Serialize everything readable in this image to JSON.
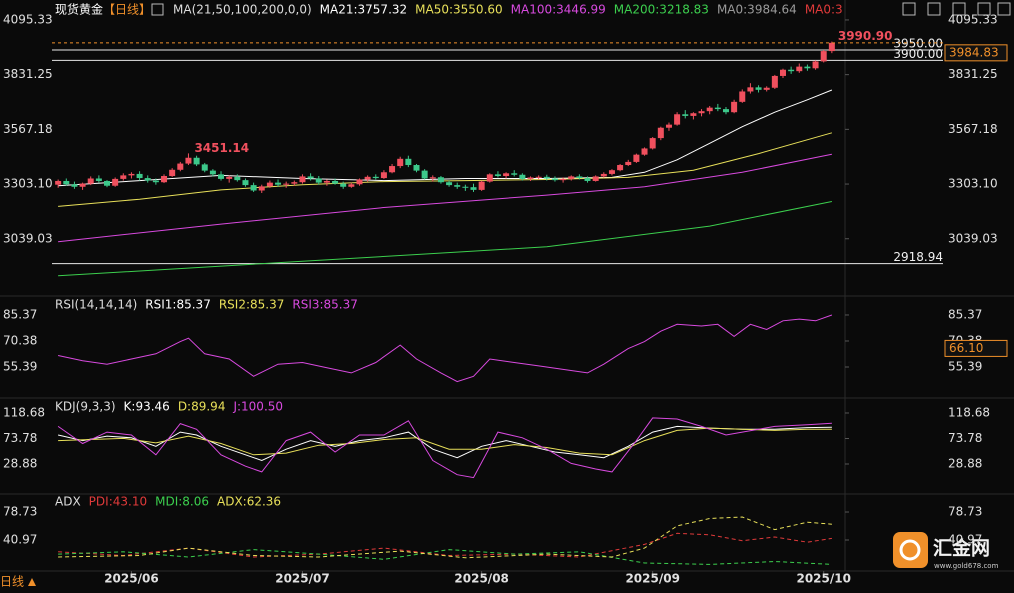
{
  "chart_data": [
    {
      "type": "candlestick",
      "title": "现货黄金",
      "period": "【日线】",
      "indicator": "MA(21,50,100,200,0,0)",
      "legend_items": [
        {
          "text": "MA21:3757.32",
          "color": "#ffffff"
        },
        {
          "text": "MA50:3550.60",
          "color": "#e8e05a"
        },
        {
          "text": "MA100:3446.99",
          "color": "#d84adf"
        },
        {
          "text": "MA200:3218.83",
          "color": "#3ccf4e"
        },
        {
          "text": "MA0:3984.64",
          "color": "#9a9a9a"
        },
        {
          "text": "MA0:3",
          "color": "#e03a3a"
        }
      ],
      "xlim": [
        -1,
        96
      ],
      "xticks": [
        {
          "value": 9,
          "label": "2025/06"
        },
        {
          "value": 30,
          "label": "2025/07"
        },
        {
          "value": 52,
          "label": "2025/08"
        },
        {
          "value": 73,
          "label": "2025/09"
        },
        {
          "value": 94,
          "label": "2025/10"
        }
      ],
      "ylim": [
        2782,
        4153
      ],
      "yticks": [
        4095.33,
        3831.25,
        3567.18,
        {
          "value": 3303.1,
          "label": "3303.10"
        },
        3039.03
      ],
      "up_color": "#f0505e",
      "down_color": "#3cc88a",
      "candles": [
        [
          3300,
          3325,
          3285,
          3318
        ],
        [
          3318,
          3330,
          3295,
          3302
        ],
        [
          3302,
          3315,
          3280,
          3290
        ],
        [
          3290,
          3310,
          3275,
          3305
        ],
        [
          3305,
          3340,
          3298,
          3330
        ],
        [
          3330,
          3345,
          3310,
          3318
        ],
        [
          3318,
          3322,
          3288,
          3295
        ],
        [
          3295,
          3335,
          3290,
          3328
        ],
        [
          3328,
          3355,
          3320,
          3345
        ],
        [
          3345,
          3360,
          3330,
          3352
        ],
        [
          3352,
          3365,
          3320,
          3332
        ],
        [
          3332,
          3345,
          3310,
          3320
        ],
        [
          3320,
          3330,
          3300,
          3312
        ],
        [
          3312,
          3350,
          3308,
          3342
        ],
        [
          3342,
          3380,
          3338,
          3372
        ],
        [
          3372,
          3410,
          3365,
          3402
        ],
        [
          3402,
          3451.14,
          3395,
          3430
        ],
        [
          3430,
          3440,
          3390,
          3398
        ],
        [
          3398,
          3405,
          3360,
          3368
        ],
        [
          3368,
          3375,
          3340,
          3350
        ],
        [
          3350,
          3365,
          3320,
          3328
        ],
        [
          3328,
          3345,
          3310,
          3338
        ],
        [
          3338,
          3350,
          3315,
          3322
        ],
        [
          3322,
          3330,
          3290,
          3298
        ],
        [
          3298,
          3310,
          3265,
          3272
        ],
        [
          3272,
          3300,
          3260,
          3292
        ],
        [
          3292,
          3320,
          3285,
          3310
        ],
        [
          3310,
          3325,
          3290,
          3300
        ],
        [
          3300,
          3315,
          3285,
          3305
        ],
        [
          3305,
          3320,
          3295,
          3312
        ],
        [
          3312,
          3350,
          3305,
          3340
        ],
        [
          3340,
          3355,
          3320,
          3330
        ],
        [
          3330,
          3342,
          3300,
          3310
        ],
        [
          3310,
          3325,
          3295,
          3318
        ],
        [
          3318,
          3330,
          3300,
          3305
        ],
        [
          3305,
          3315,
          3280,
          3290
        ],
        [
          3290,
          3310,
          3285,
          3302
        ],
        [
          3302,
          3330,
          3295,
          3325
        ],
        [
          3325,
          3345,
          3315,
          3338
        ],
        [
          3338,
          3350,
          3325,
          3332
        ],
        [
          3332,
          3370,
          3328,
          3360
        ],
        [
          3360,
          3400,
          3355,
          3390
        ],
        [
          3390,
          3435,
          3380,
          3425
        ],
        [
          3425,
          3440,
          3385,
          3395
        ],
        [
          3395,
          3400,
          3360,
          3368
        ],
        [
          3368,
          3375,
          3325,
          3330
        ],
        [
          3330,
          3345,
          3315,
          3336
        ],
        [
          3336,
          3342,
          3305,
          3312
        ],
        [
          3312,
          3320,
          3290,
          3298
        ],
        [
          3298,
          3310,
          3280,
          3290
        ],
        [
          3290,
          3300,
          3270,
          3288
        ],
        [
          3288,
          3305,
          3265,
          3275
        ],
        [
          3275,
          3320,
          3270,
          3315
        ],
        [
          3315,
          3355,
          3310,
          3350
        ],
        [
          3350,
          3365,
          3335,
          3342
        ],
        [
          3342,
          3360,
          3330,
          3355
        ],
        [
          3355,
          3370,
          3340,
          3348
        ],
        [
          3348,
          3355,
          3320,
          3328
        ],
        [
          3328,
          3340,
          3318,
          3335
        ],
        [
          3335,
          3345,
          3325,
          3338
        ],
        [
          3338,
          3348,
          3320,
          3330
        ],
        [
          3330,
          3340,
          3315,
          3322
        ],
        [
          3322,
          3335,
          3310,
          3328
        ],
        [
          3328,
          3345,
          3320,
          3340
        ],
        [
          3340,
          3350,
          3325,
          3332
        ],
        [
          3332,
          3340,
          3310,
          3318
        ],
        [
          3318,
          3345,
          3315,
          3340
        ],
        [
          3340,
          3360,
          3335,
          3352
        ],
        [
          3352,
          3375,
          3345,
          3370
        ],
        [
          3370,
          3400,
          3365,
          3395
        ],
        [
          3395,
          3420,
          3390,
          3410
        ],
        [
          3410,
          3450,
          3405,
          3445
        ],
        [
          3445,
          3480,
          3440,
          3475
        ],
        [
          3475,
          3530,
          3470,
          3525
        ],
        [
          3525,
          3580,
          3515,
          3575
        ],
        [
          3575,
          3600,
          3560,
          3590
        ],
        [
          3590,
          3650,
          3585,
          3640
        ],
        [
          3640,
          3660,
          3620,
          3632
        ],
        [
          3632,
          3650,
          3615,
          3645
        ],
        [
          3645,
          3665,
          3630,
          3655
        ],
        [
          3655,
          3680,
          3640,
          3672
        ],
        [
          3672,
          3690,
          3655,
          3665
        ],
        [
          3665,
          3675,
          3640,
          3650
        ],
        [
          3650,
          3710,
          3645,
          3700
        ],
        [
          3700,
          3760,
          3695,
          3750
        ],
        [
          3750,
          3790,
          3740,
          3770
        ],
        [
          3770,
          3780,
          3745,
          3758
        ],
        [
          3758,
          3775,
          3750,
          3768
        ],
        [
          3768,
          3830,
          3762,
          3825
        ],
        [
          3825,
          3860,
          3815,
          3855
        ],
        [
          3855,
          3870,
          3835,
          3848
        ],
        [
          3848,
          3885,
          3840,
          3870
        ],
        [
          3870,
          3880,
          3850,
          3862
        ],
        [
          3862,
          3900,
          3855,
          3895
        ],
        [
          3895,
          3950,
          3890,
          3945
        ],
        [
          3945,
          3990.9,
          3935,
          3984.83
        ]
      ],
      "series": [
        {
          "color": "#ffffff",
          "x": [
            0,
            10,
            20,
            30,
            40,
            50,
            60,
            68,
            72,
            76,
            80,
            84,
            88,
            92,
            95
          ],
          "values": [
            3295,
            3320,
            3345,
            3330,
            3320,
            3330,
            3330,
            3335,
            3360,
            3420,
            3500,
            3580,
            3650,
            3710,
            3757.32
          ]
        },
        {
          "color": "#e8e05a",
          "x": [
            0,
            10,
            20,
            30,
            40,
            50,
            60,
            70,
            78,
            86,
            95
          ],
          "values": [
            3195,
            3230,
            3275,
            3300,
            3315,
            3320,
            3325,
            3335,
            3370,
            3450,
            3550.6
          ]
        },
        {
          "color": "#d84adf",
          "x": [
            0,
            20,
            40,
            60,
            72,
            84,
            95
          ],
          "values": [
            3025,
            3110,
            3190,
            3250,
            3290,
            3360,
            3446.99
          ]
        },
        {
          "color": "#3ccf4e",
          "x": [
            0,
            30,
            60,
            80,
            95
          ],
          "values": [
            2860,
            2930,
            3000,
            3100,
            3218.83
          ]
        }
      ],
      "price_lines": [
        {
          "value": 3950,
          "label": "3950.00"
        },
        {
          "value": 3900,
          "label": "3900.00"
        },
        {
          "value": 2918.94,
          "label": "2918.94"
        }
      ],
      "annotations": [
        {
          "value": 3451.14,
          "label": "3451.14"
        },
        {
          "value": 3990.9,
          "label": "3990.90"
        }
      ],
      "last_price": 3984.83,
      "last_color": "#f0902a"
    },
    {
      "type": "line",
      "indicator": "RSI(14,14,14)",
      "legend_items": [
        {
          "text": "RSI1:85.37",
          "color": "#ffffff"
        },
        {
          "text": "RSI2:85.37",
          "color": "#e8e05a"
        },
        {
          "text": "RSI3:85.37",
          "color": "#d84adf"
        }
      ],
      "ylim": [
        39.25,
        94
      ],
      "yticks": [
        85.37,
        70.38,
        55.39
      ],
      "series": [
        {
          "color": "#d84adf",
          "x": [
            0,
            3,
            6,
            9,
            12,
            15,
            16,
            18,
            21,
            24,
            27,
            30,
            33,
            36,
            39,
            42,
            44,
            47,
            49,
            51,
            53,
            56,
            59,
            62,
            65,
            67,
            70,
            72,
            74,
            76,
            79,
            81,
            83,
            85,
            87,
            89,
            91,
            93,
            95
          ],
          "values": [
            62,
            59,
            57,
            60,
            63,
            70,
            72,
            63,
            60,
            50,
            57,
            58,
            55,
            52,
            58,
            68,
            60,
            52,
            47,
            50,
            60,
            58,
            56,
            54,
            52,
            57,
            66,
            70,
            76,
            80,
            79,
            80,
            73,
            80,
            77,
            82,
            83,
            82,
            85.37
          ]
        }
      ],
      "current_label": {
        "value": 66.1,
        "label": "66.10"
      }
    },
    {
      "type": "line",
      "indicator": "KDJ(9,3,3)",
      "legend_items": [
        {
          "text": "K:93.46",
          "color": "#ffffff"
        },
        {
          "text": "D:89.94",
          "color": "#e8e05a"
        },
        {
          "text": "J:100.50",
          "color": "#d84adf"
        }
      ],
      "ylim": [
        -20.4,
        138
      ],
      "yticks": [
        118.68,
        73.78,
        28.88
      ],
      "series": [
        {
          "color": "#ffffff",
          "x": [
            0,
            3,
            6,
            9,
            12,
            15,
            17,
            20,
            23,
            25,
            28,
            31,
            34,
            37,
            40,
            43,
            46,
            49,
            52,
            55,
            58,
            61,
            64,
            67,
            70,
            73,
            76,
            80,
            84,
            88,
            92,
            95
          ],
          "values": [
            80,
            70,
            78,
            75,
            60,
            85,
            80,
            60,
            45,
            35,
            55,
            70,
            60,
            70,
            75,
            85,
            55,
            40,
            60,
            70,
            60,
            50,
            45,
            40,
            60,
            85,
            95,
            92,
            90,
            90,
            93,
            93.46
          ]
        },
        {
          "color": "#e8e05a",
          "x": [
            0,
            4,
            8,
            12,
            16,
            20,
            24,
            28,
            32,
            36,
            40,
            44,
            48,
            52,
            56,
            60,
            64,
            68,
            72,
            76,
            80,
            84,
            88,
            92,
            95
          ],
          "values": [
            70,
            72,
            74,
            66,
            78,
            65,
            45,
            48,
            62,
            65,
            72,
            75,
            55,
            55,
            63,
            58,
            48,
            45,
            70,
            88,
            92,
            90,
            88,
            90,
            89.94
          ]
        },
        {
          "color": "#d84adf",
          "x": [
            0,
            3,
            6,
            9,
            12,
            15,
            17,
            20,
            23,
            25,
            28,
            31,
            34,
            37,
            40,
            43,
            46,
            49,
            51,
            54,
            57,
            60,
            63,
            66,
            68,
            71,
            73,
            76,
            79,
            82,
            84,
            88,
            92,
            95
          ],
          "values": [
            95,
            65,
            85,
            80,
            45,
            100,
            90,
            45,
            25,
            15,
            70,
            85,
            50,
            80,
            80,
            105,
            35,
            10,
            5,
            85,
            75,
            55,
            30,
            20,
            15,
            70,
            110,
            108,
            95,
            80,
            85,
            95,
            98,
            100.5
          ]
        }
      ]
    },
    {
      "type": "line",
      "indicator": "ADX",
      "dashed": true,
      "legend_items": [
        {
          "text": "PDI:43.10",
          "color": "#e03a3a"
        },
        {
          "text": "MDI:8.06",
          "color": "#3ccf4e"
        },
        {
          "text": "ADX:62.36",
          "color": "#e8e05a"
        }
      ],
      "ylim": [
        0.5,
        99
      ],
      "yticks": [
        78.73,
        40.97
      ],
      "series": [
        {
          "color": "#e03a3a",
          "x": [
            0,
            8,
            16,
            24,
            32,
            40,
            48,
            56,
            64,
            72,
            76,
            80,
            84,
            88,
            92,
            95
          ],
          "values": [
            25,
            20,
            30,
            18,
            22,
            30,
            20,
            22,
            18,
            35,
            50,
            48,
            40,
            45,
            38,
            43.1
          ]
        },
        {
          "color": "#3ccf4e",
          "x": [
            0,
            8,
            16,
            24,
            32,
            40,
            48,
            56,
            64,
            72,
            80,
            88,
            95
          ],
          "values": [
            22,
            25,
            18,
            28,
            22,
            15,
            28,
            22,
            25,
            10,
            8,
            12,
            8.06
          ]
        },
        {
          "color": "#e8e05a",
          "x": [
            0,
            10,
            16,
            24,
            32,
            42,
            50,
            60,
            68,
            72,
            76,
            80,
            84,
            88,
            92,
            95
          ],
          "values": [
            18,
            20,
            30,
            20,
            18,
            26,
            17,
            22,
            18,
            30,
            60,
            70,
            72,
            55,
            65,
            62.36
          ]
        }
      ]
    }
  ],
  "ui": {
    "period_button": "日线",
    "logo": "汇金网",
    "logo_url": "www.gold678.com"
  }
}
